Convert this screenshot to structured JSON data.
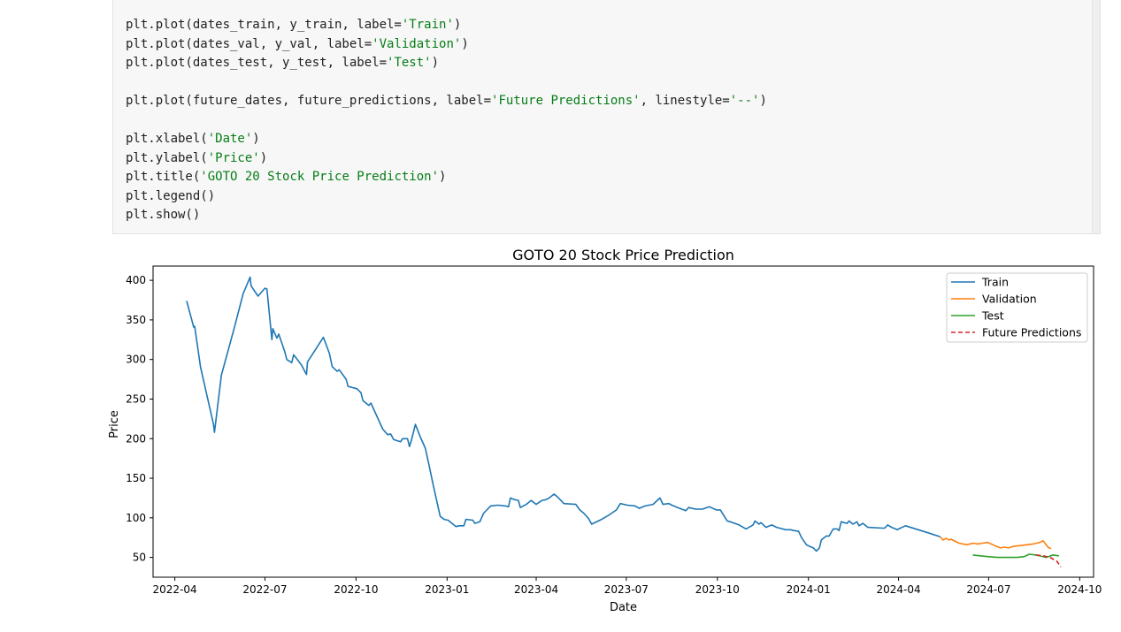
{
  "code_cell": {
    "lines": [
      [
        {
          "t": "plt.plot(dates_train, y_train, label="
        },
        {
          "t": "'Train'",
          "s": 1
        },
        {
          "t": ")"
        }
      ],
      [
        {
          "t": "plt.plot(dates_val, y_val, label="
        },
        {
          "t": "'Validation'",
          "s": 1
        },
        {
          "t": ")"
        }
      ],
      [
        {
          "t": "plt.plot(dates_test, y_test, label="
        },
        {
          "t": "'Test'",
          "s": 1
        },
        {
          "t": ")"
        }
      ],
      [],
      [
        {
          "t": "plt.plot(future_dates, future_predictions, label="
        },
        {
          "t": "'Future Predictions'",
          "s": 1
        },
        {
          "t": ", linestyle="
        },
        {
          "t": "'--'",
          "s": 1
        },
        {
          "t": ")"
        }
      ],
      [],
      [
        {
          "t": "plt.xlabel("
        },
        {
          "t": "'Date'",
          "s": 1
        },
        {
          "t": ")"
        }
      ],
      [
        {
          "t": "plt.ylabel("
        },
        {
          "t": "'Price'",
          "s": 1
        },
        {
          "t": ")"
        }
      ],
      [
        {
          "t": "plt.title("
        },
        {
          "t": "'GOTO 20 Stock Price Prediction'",
          "s": 1
        },
        {
          "t": ")"
        }
      ],
      [
        {
          "t": "plt.legend()"
        }
      ],
      [
        {
          "t": "plt.show()"
        }
      ]
    ]
  },
  "colors": {
    "train": "#1f77b4",
    "validation": "#ff7f0e",
    "test": "#2ca02c",
    "future": "#d62728",
    "string_token": "#067d17"
  },
  "chart_data": {
    "type": "line",
    "title": "GOTO 20 Stock Price Prediction",
    "xlabel": "Date",
    "ylabel": "Price",
    "xlim": [
      "2022-03-10",
      "2024-10-15"
    ],
    "ylim": [
      25,
      418
    ],
    "x_ticks": [
      "2022-04-01",
      "2022-07-01",
      "2022-10-01",
      "2023-01-01",
      "2023-04-01",
      "2023-07-01",
      "2023-10-01",
      "2024-01-01",
      "2024-04-01",
      "2024-07-01",
      "2024-10-01"
    ],
    "x_tick_labels": [
      "2022-04",
      "2022-07",
      "2022-10",
      "2023-01",
      "2023-04",
      "2023-07",
      "2023-10",
      "2024-01",
      "2024-04",
      "2024-07",
      "2024-10"
    ],
    "y_ticks": [
      50,
      100,
      150,
      200,
      250,
      300,
      350,
      400
    ],
    "y_tick_labels": [
      "50",
      "100",
      "150",
      "200",
      "250",
      "300",
      "350",
      "400"
    ],
    "legend_position": "top-right",
    "grid": false,
    "series": [
      {
        "name": "Train",
        "style": "solid",
        "points": [
          [
            "2022-04-13",
            374
          ],
          [
            "2022-04-20",
            341
          ],
          [
            "2022-04-21",
            342
          ],
          [
            "2022-04-27",
            290
          ],
          [
            "2022-05-10",
            218
          ],
          [
            "2022-05-11",
            208
          ],
          [
            "2022-05-18",
            280
          ],
          [
            "2022-05-31",
            340
          ],
          [
            "2022-06-09",
            383
          ],
          [
            "2022-06-16",
            404
          ],
          [
            "2022-06-17",
            393
          ],
          [
            "2022-06-24",
            380
          ],
          [
            "2022-07-01",
            390
          ],
          [
            "2022-07-03",
            389
          ],
          [
            "2022-07-08",
            325
          ],
          [
            "2022-07-09",
            339
          ],
          [
            "2022-07-13",
            327
          ],
          [
            "2022-07-15",
            332
          ],
          [
            "2022-07-21",
            310
          ],
          [
            "2022-07-23",
            300
          ],
          [
            "2022-07-28",
            296
          ],
          [
            "2022-07-30",
            306
          ],
          [
            "2022-08-07",
            293
          ],
          [
            "2022-08-12",
            281
          ],
          [
            "2022-08-13",
            297
          ],
          [
            "2022-08-29",
            328
          ],
          [
            "2022-09-04",
            308
          ],
          [
            "2022-09-07",
            291
          ],
          [
            "2022-09-12",
            285
          ],
          [
            "2022-09-14",
            287
          ],
          [
            "2022-09-21",
            275
          ],
          [
            "2022-09-23",
            266
          ],
          [
            "2022-10-02",
            263
          ],
          [
            "2022-10-06",
            258
          ],
          [
            "2022-10-08",
            248
          ],
          [
            "2022-10-14",
            242
          ],
          [
            "2022-10-16",
            245
          ],
          [
            "2022-10-28",
            212
          ],
          [
            "2022-11-02",
            205
          ],
          [
            "2022-11-05",
            206
          ],
          [
            "2022-11-08",
            199
          ],
          [
            "2022-11-15",
            196
          ],
          [
            "2022-11-17",
            200
          ],
          [
            "2022-11-22",
            200
          ],
          [
            "2022-11-24",
            190
          ],
          [
            "2022-11-26",
            198
          ],
          [
            "2022-11-30",
            218
          ],
          [
            "2022-12-05",
            202
          ],
          [
            "2022-12-10",
            188
          ],
          [
            "2022-12-14",
            165
          ],
          [
            "2022-12-18",
            141
          ],
          [
            "2022-12-25",
            102
          ],
          [
            "2022-12-29",
            98
          ],
          [
            "2023-01-02",
            97
          ],
          [
            "2023-01-05",
            94
          ],
          [
            "2023-01-10",
            89
          ],
          [
            "2023-01-13",
            90
          ],
          [
            "2023-01-18",
            90
          ],
          [
            "2023-01-20",
            98
          ],
          [
            "2023-01-27",
            97
          ],
          [
            "2023-01-29",
            93
          ],
          [
            "2023-02-03",
            95
          ],
          [
            "2023-02-07",
            106
          ],
          [
            "2023-02-14",
            115
          ],
          [
            "2023-02-21",
            116
          ],
          [
            "2023-03-01",
            115
          ],
          [
            "2023-03-04",
            114
          ],
          [
            "2023-03-06",
            125
          ],
          [
            "2023-03-10",
            123
          ],
          [
            "2023-03-14",
            122
          ],
          [
            "2023-03-16",
            113
          ],
          [
            "2023-03-22",
            117
          ],
          [
            "2023-03-27",
            122
          ],
          [
            "2023-04-01",
            117
          ],
          [
            "2023-04-07",
            122
          ],
          [
            "2023-04-11",
            123
          ],
          [
            "2023-04-14",
            125
          ],
          [
            "2023-04-19",
            130
          ],
          [
            "2023-04-22",
            127
          ],
          [
            "2023-04-29",
            118
          ],
          [
            "2023-05-11",
            117
          ],
          [
            "2023-05-15",
            110
          ],
          [
            "2023-05-19",
            106
          ],
          [
            "2023-05-24",
            99
          ],
          [
            "2023-05-27",
            92
          ],
          [
            "2023-06-06",
            98
          ],
          [
            "2023-06-13",
            103
          ],
          [
            "2023-06-21",
            110
          ],
          [
            "2023-06-25",
            118
          ],
          [
            "2023-07-02",
            116
          ],
          [
            "2023-07-10",
            115
          ],
          [
            "2023-07-14",
            112
          ],
          [
            "2023-07-20",
            115
          ],
          [
            "2023-07-28",
            117
          ],
          [
            "2023-08-04",
            125
          ],
          [
            "2023-08-07",
            117
          ],
          [
            "2023-08-13",
            118
          ],
          [
            "2023-08-16",
            116
          ],
          [
            "2023-08-22",
            113
          ],
          [
            "2023-08-30",
            109
          ],
          [
            "2023-09-02",
            113
          ],
          [
            "2023-09-09",
            111
          ],
          [
            "2023-09-16",
            111
          ],
          [
            "2023-09-23",
            114
          ],
          [
            "2023-09-30",
            110
          ],
          [
            "2023-10-04",
            110
          ],
          [
            "2023-10-11",
            96
          ],
          [
            "2023-10-14",
            95
          ],
          [
            "2023-10-23",
            91
          ],
          [
            "2023-10-30",
            86
          ],
          [
            "2023-11-06",
            91
          ],
          [
            "2023-11-08",
            96
          ],
          [
            "2023-11-12",
            92
          ],
          [
            "2023-11-14",
            94
          ],
          [
            "2023-11-19",
            88
          ],
          [
            "2023-11-25",
            91
          ],
          [
            "2023-11-30",
            88
          ],
          [
            "2023-12-09",
            85
          ],
          [
            "2023-12-14",
            85
          ],
          [
            "2023-12-17",
            84
          ],
          [
            "2023-12-22",
            83
          ],
          [
            "2023-12-25",
            75
          ],
          [
            "2023-12-30",
            66
          ],
          [
            "2024-01-02",
            64
          ],
          [
            "2024-01-06",
            62
          ],
          [
            "2024-01-09",
            58
          ],
          [
            "2024-01-12",
            62
          ],
          [
            "2024-01-14",
            72
          ],
          [
            "2024-01-19",
            77
          ],
          [
            "2024-01-22",
            77
          ],
          [
            "2024-01-26",
            86
          ],
          [
            "2024-01-30",
            86
          ],
          [
            "2024-02-01",
            84
          ],
          [
            "2024-02-03",
            95
          ],
          [
            "2024-02-09",
            93
          ],
          [
            "2024-02-11",
            96
          ],
          [
            "2024-02-15",
            92
          ],
          [
            "2024-02-19",
            95
          ],
          [
            "2024-02-21",
            90
          ],
          [
            "2024-02-25",
            93
          ],
          [
            "2024-03-01",
            88
          ],
          [
            "2024-03-16",
            87
          ],
          [
            "2024-03-18",
            87
          ],
          [
            "2024-03-21",
            91
          ],
          [
            "2024-03-25",
            88
          ],
          [
            "2024-03-31",
            85
          ],
          [
            "2024-04-01",
            86
          ],
          [
            "2024-04-08",
            90
          ],
          [
            "2024-05-01",
            81
          ],
          [
            "2024-05-13",
            76
          ]
        ]
      },
      {
        "name": "Validation",
        "style": "solid",
        "points": [
          [
            "2024-05-13",
            76
          ],
          [
            "2024-05-16",
            72
          ],
          [
            "2024-05-19",
            74
          ],
          [
            "2024-05-22",
            72
          ],
          [
            "2024-05-24",
            73
          ],
          [
            "2024-06-01",
            68
          ],
          [
            "2024-06-09",
            66
          ],
          [
            "2024-06-15",
            68
          ],
          [
            "2024-06-20",
            67
          ],
          [
            "2024-06-25",
            68
          ],
          [
            "2024-06-30",
            69
          ],
          [
            "2024-07-07",
            65
          ],
          [
            "2024-07-13",
            62
          ],
          [
            "2024-07-17",
            63
          ],
          [
            "2024-07-21",
            62
          ],
          [
            "2024-07-26",
            64
          ],
          [
            "2024-08-02",
            65
          ],
          [
            "2024-08-09",
            66
          ],
          [
            "2024-08-15",
            67
          ],
          [
            "2024-08-22",
            69
          ],
          [
            "2024-08-25",
            71
          ],
          [
            "2024-08-30",
            63
          ],
          [
            "2024-09-02",
            61
          ]
        ]
      },
      {
        "name": "Test",
        "style": "solid",
        "points": [
          [
            "2024-06-15",
            53
          ],
          [
            "2024-06-30",
            51
          ],
          [
            "2024-07-10",
            50
          ],
          [
            "2024-07-30",
            50
          ],
          [
            "2024-08-06",
            51
          ],
          [
            "2024-08-11",
            54
          ],
          [
            "2024-08-18",
            53
          ],
          [
            "2024-08-28",
            50
          ],
          [
            "2024-09-04",
            53
          ],
          [
            "2024-09-10",
            52
          ]
        ]
      },
      {
        "name": "Future Predictions",
        "style": "dashed",
        "points": [
          [
            "2024-08-18",
            53
          ],
          [
            "2024-08-25",
            52
          ],
          [
            "2024-09-01",
            50
          ],
          [
            "2024-09-08",
            45
          ],
          [
            "2024-09-12",
            38
          ]
        ]
      }
    ]
  }
}
